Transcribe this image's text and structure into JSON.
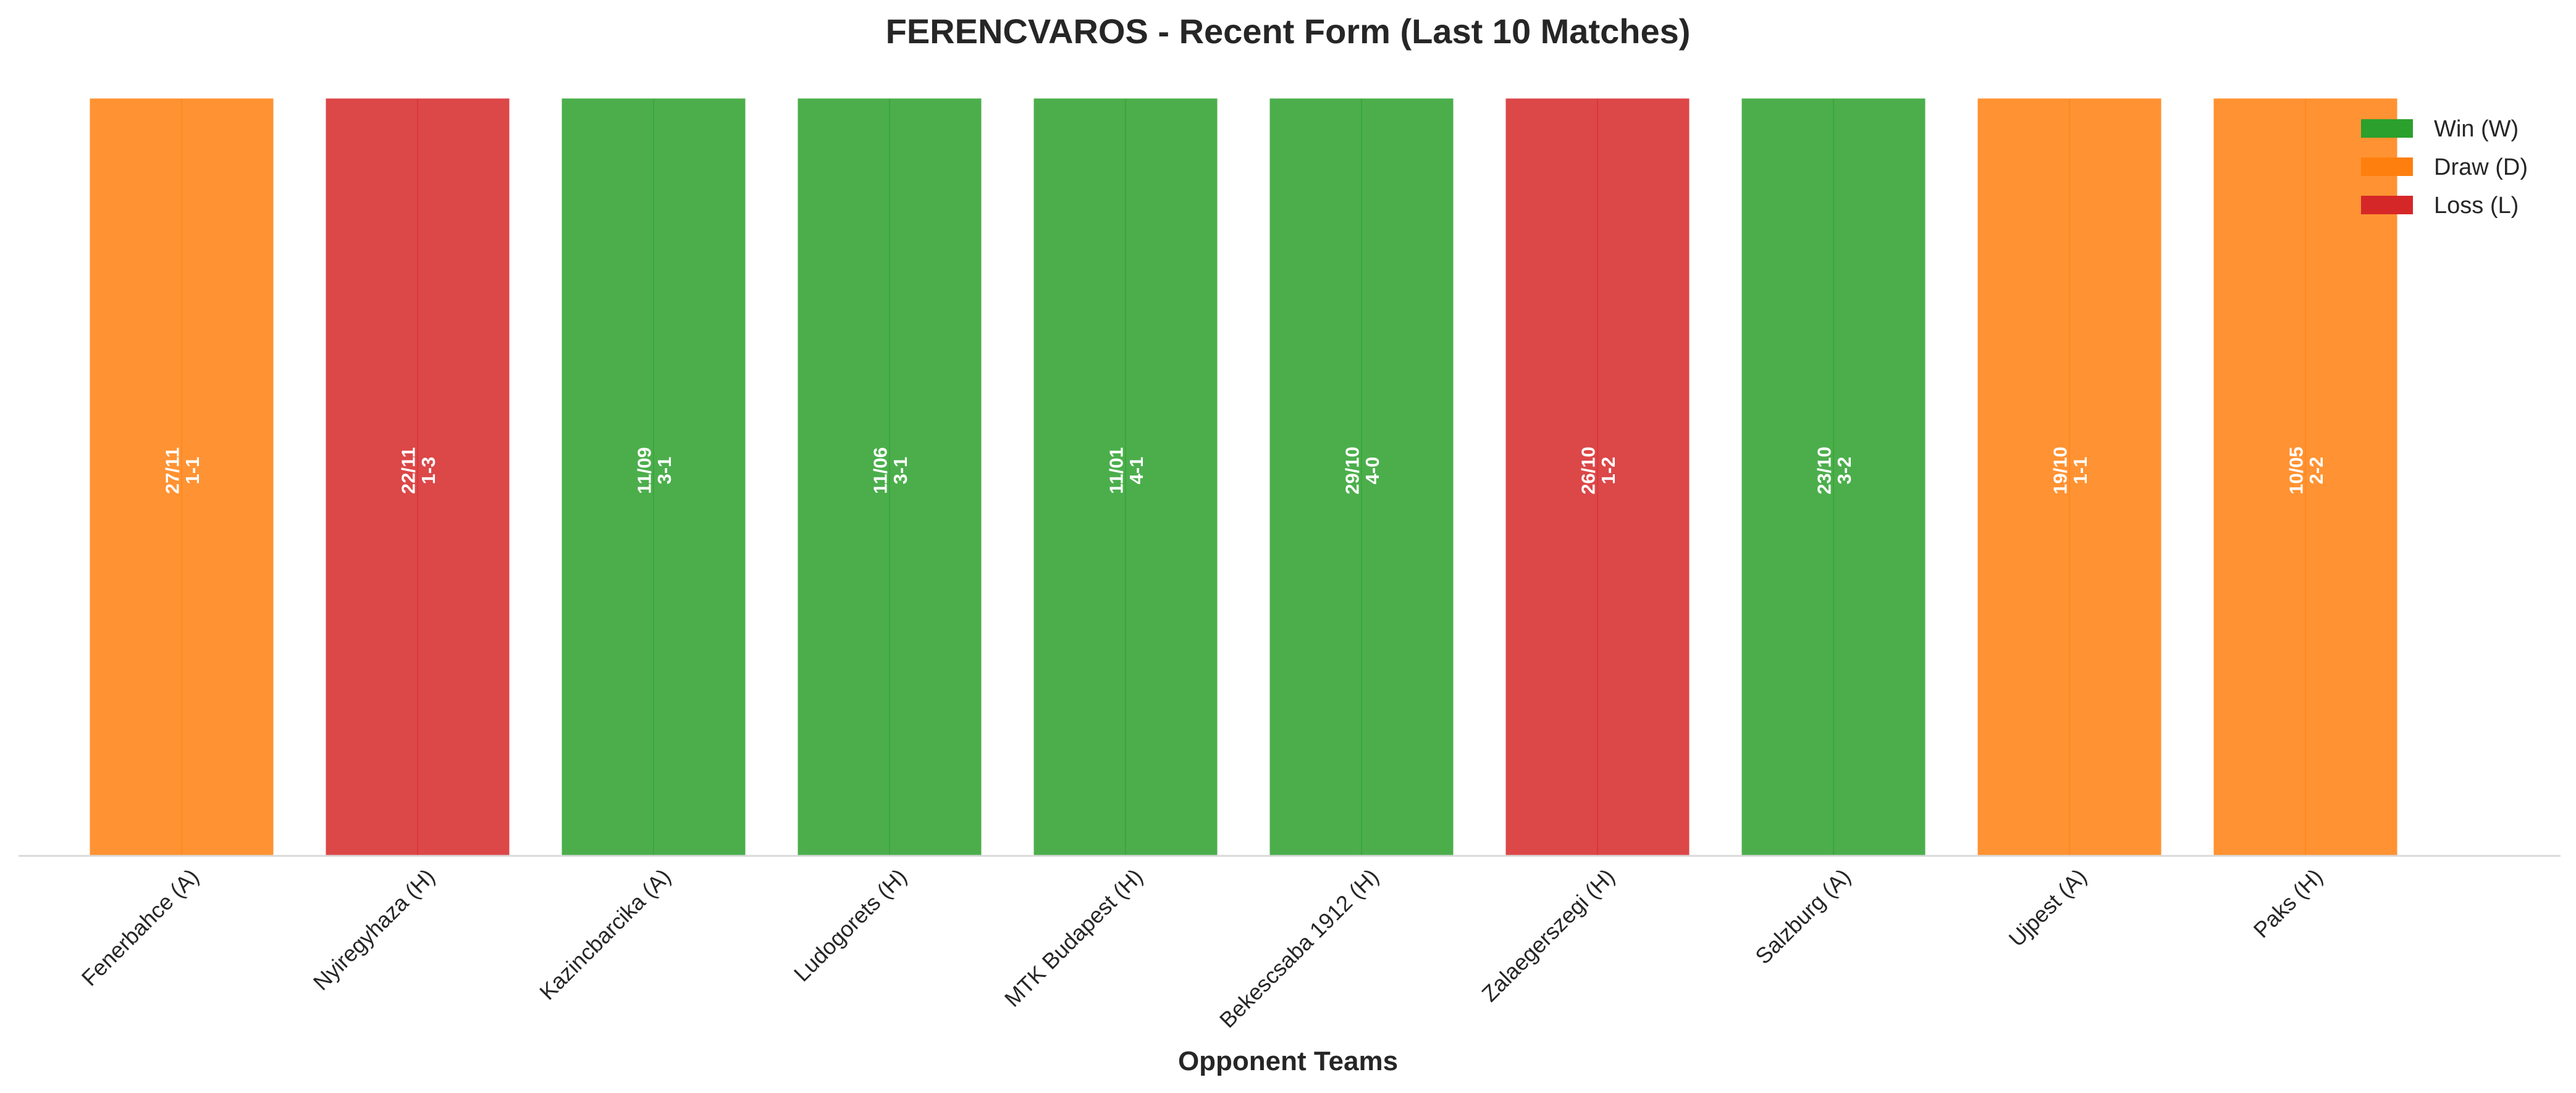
{
  "chart_data": {
    "type": "bar",
    "title": "FERENCVAROS - Recent Form (Last 10 Matches)",
    "xlabel": "Opponent Teams",
    "ylabel": "",
    "grid": false,
    "legend_position": "top-right",
    "categories": [
      "Fenerbahce (A)",
      "Nyiregyhaza (H)",
      "Kazincbarcika (A)",
      "Ludogorets (H)",
      "MTK Budapest (H)",
      "Bekescsaba 1912 (H)",
      "Zalaegerszegi (H)",
      "Salzburg (A)",
      "Ujpest (A)",
      "Paks (H)"
    ],
    "values": [
      1,
      1,
      1,
      1,
      1,
      1,
      1,
      1,
      1,
      1
    ],
    "ylim": [
      0,
      1
    ],
    "results": [
      "D",
      "L",
      "W",
      "W",
      "W",
      "W",
      "L",
      "W",
      "D",
      "D"
    ],
    "dates": [
      "27/11",
      "22/11",
      "11/09",
      "11/06",
      "11/01",
      "29/10",
      "26/10",
      "23/10",
      "19/10",
      "10/05"
    ],
    "scores": [
      "1-1",
      "1-3",
      "3-1",
      "3-1",
      "4-1",
      "4-0",
      "1-2",
      "3-2",
      "1-1",
      "2-2"
    ],
    "legend": [
      {
        "key": "W",
        "label": "Win (W)"
      },
      {
        "key": "D",
        "label": "Draw (D)"
      },
      {
        "key": "L",
        "label": "Loss (L)"
      }
    ],
    "colors": {
      "W": "#2ca02c",
      "D": "#ff7f0e",
      "L": "#d62728"
    }
  }
}
